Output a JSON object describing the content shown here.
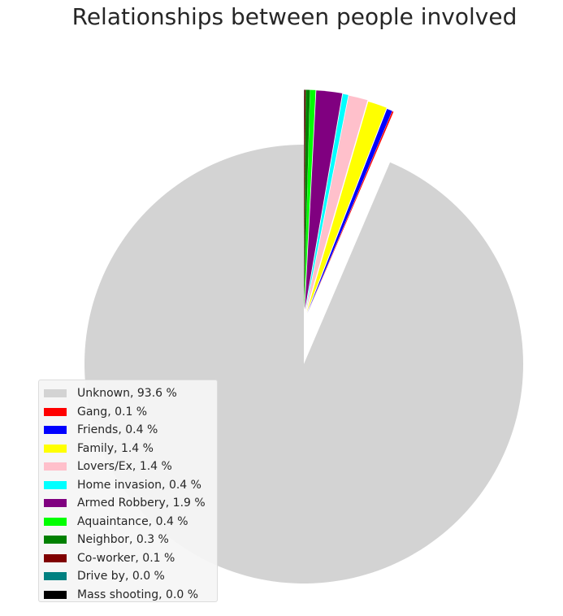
{
  "chart_data": {
    "type": "pie",
    "title": "Relationships between people involved",
    "legend_position": "lower-left",
    "slices": [
      {
        "label": "Unknown, 93.6 %",
        "value": 93.6,
        "color": "#d3d3d3",
        "exploded": false
      },
      {
        "label": "Gang, 0.1 %",
        "value": 0.1,
        "color": "#ff0000",
        "exploded": true
      },
      {
        "label": "Friends, 0.4 %",
        "value": 0.4,
        "color": "#0000ff",
        "exploded": true
      },
      {
        "label": "Family, 1.4 %",
        "value": 1.4,
        "color": "#ffff00",
        "exploded": true
      },
      {
        "label": "Lovers/Ex, 1.4 %",
        "value": 1.4,
        "color": "#ffc0cb",
        "exploded": true
      },
      {
        "label": "Home invasion, 0.4 %",
        "value": 0.4,
        "color": "#00ffff",
        "exploded": true
      },
      {
        "label": "Armed Robbery, 1.9 %",
        "value": 1.9,
        "color": "#800080",
        "exploded": true
      },
      {
        "label": "Aquaintance, 0.4 %",
        "value": 0.4,
        "color": "#00ff00",
        "exploded": true
      },
      {
        "label": "Neighbor, 0.3 %",
        "value": 0.3,
        "color": "#008000",
        "exploded": true
      },
      {
        "label": "Co-worker, 0.1 %",
        "value": 0.1,
        "color": "#800000",
        "exploded": true
      },
      {
        "label": "Drive by, 0.0 %",
        "value": 0.02,
        "color": "#008080",
        "exploded": true
      },
      {
        "label": "Mass shooting, 0.0 %",
        "value": 0.01,
        "color": "#000000",
        "exploded": true
      }
    ]
  }
}
